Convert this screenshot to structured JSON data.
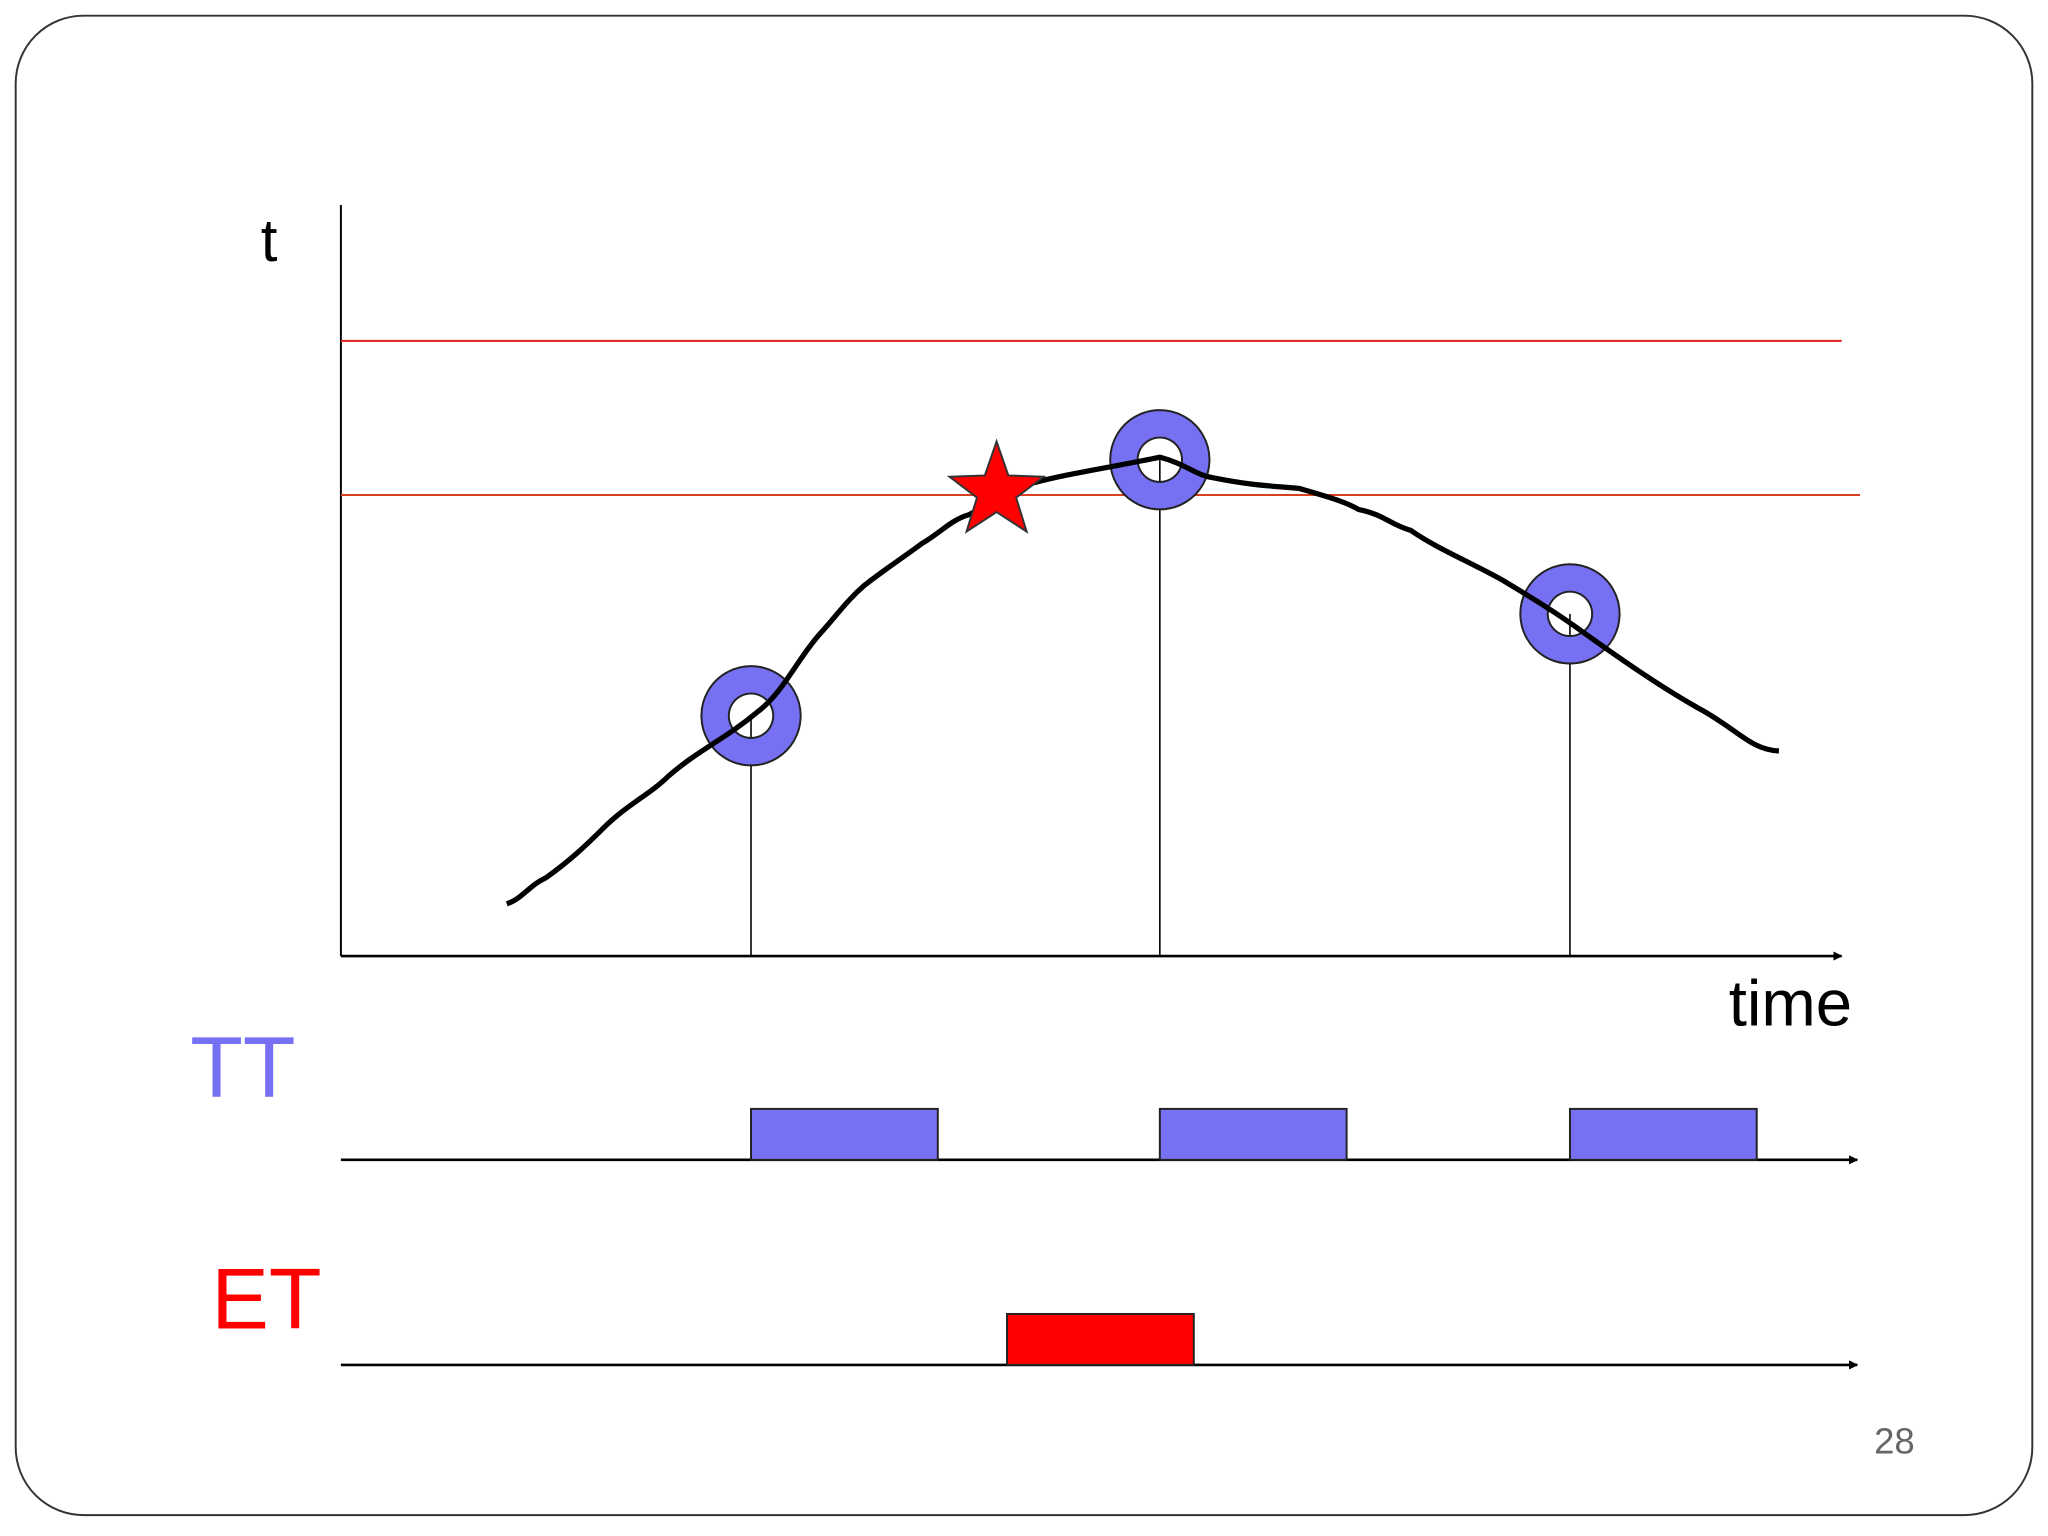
{
  "diagram": {
    "y_axis_label": "t",
    "x_axis_label": "time",
    "rows": [
      {
        "label": "TT"
      },
      {
        "label": "ET"
      }
    ],
    "page_number": "28"
  }
}
